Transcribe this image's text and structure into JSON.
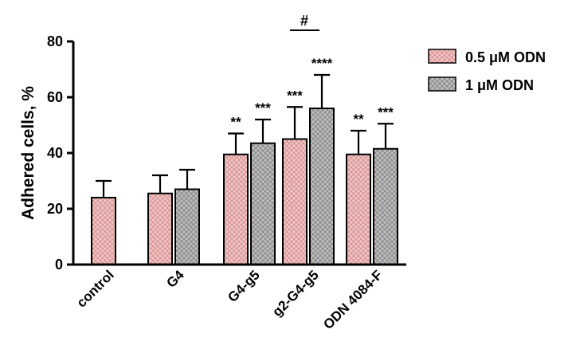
{
  "chart_data": {
    "type": "bar",
    "ylabel": "Adhered cells, %",
    "ylim": [
      0,
      80
    ],
    "yticks": [
      "0",
      "20",
      "40",
      "60",
      "80"
    ],
    "categories": [
      "control",
      "G4",
      "G4-g5",
      "g2-G4-g5",
      "ODN 4084-F"
    ],
    "series": [
      {
        "name": "0.5 μM ODN",
        "color": "#f2b8b8",
        "values": [
          24,
          25.5,
          39.5,
          45,
          39.5
        ],
        "errors": [
          6,
          6.5,
          7.5,
          11.5,
          8.5
        ],
        "significance": [
          "",
          "",
          "**",
          "***",
          "**"
        ]
      },
      {
        "name": "1 μM ODN",
        "color": "#b5b5b5",
        "values": [
          null,
          27,
          43.5,
          56,
          41.5
        ],
        "errors": [
          null,
          7,
          8.5,
          12,
          9
        ],
        "significance": [
          "",
          "",
          "***",
          "****",
          "***"
        ]
      }
    ],
    "annotations": [
      {
        "text": "#",
        "between_category": "g2-G4-g5"
      }
    ],
    "legend_position": "right"
  }
}
